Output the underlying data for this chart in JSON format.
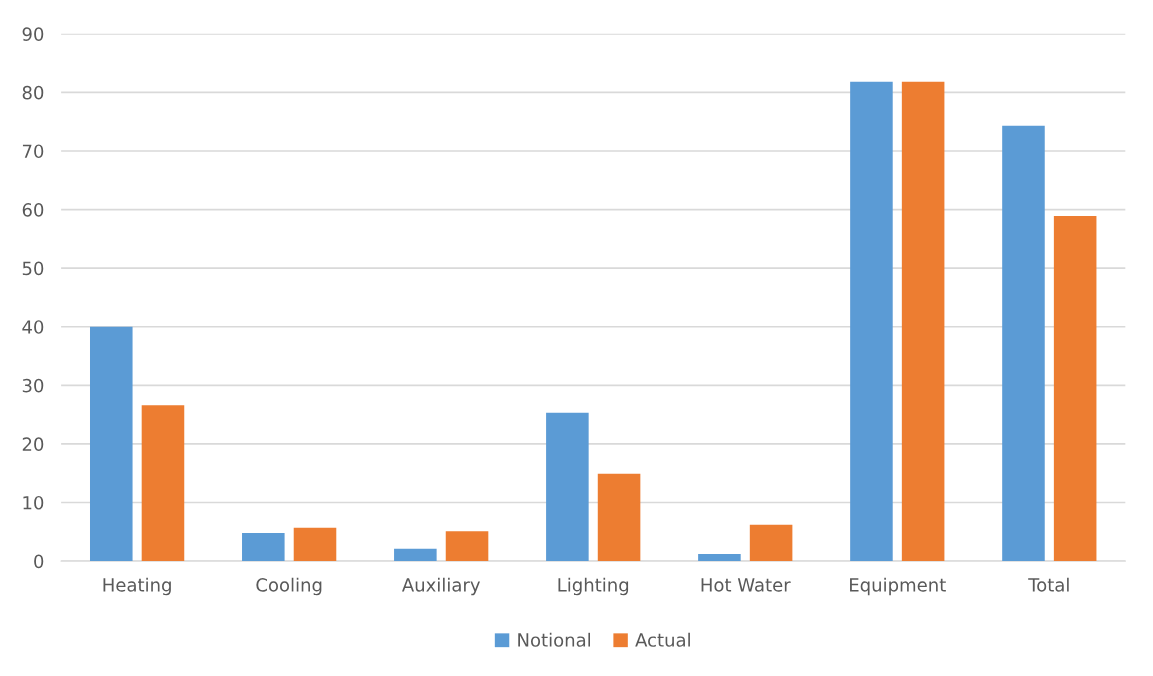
{
  "chart_data": {
    "type": "bar",
    "categories": [
      "Heating",
      "Cooling",
      "Auxiliary",
      "Lighting",
      "Hot Water",
      "Equipment",
      "Total"
    ],
    "series": [
      {
        "name": "Notional",
        "color": "#5b9bd5",
        "values": [
          40,
          4.8,
          2.1,
          25.3,
          1.2,
          81.8,
          74.3
        ]
      },
      {
        "name": "Actual",
        "color": "#ed7d31",
        "values": [
          26.6,
          5.7,
          5.1,
          14.9,
          6.2,
          81.8,
          58.9
        ]
      }
    ],
    "ylim": [
      0,
      90
    ],
    "yticks": [
      0,
      10,
      20,
      30,
      40,
      50,
      60,
      70,
      80,
      90
    ],
    "grid": "y",
    "legend": "bottom"
  }
}
